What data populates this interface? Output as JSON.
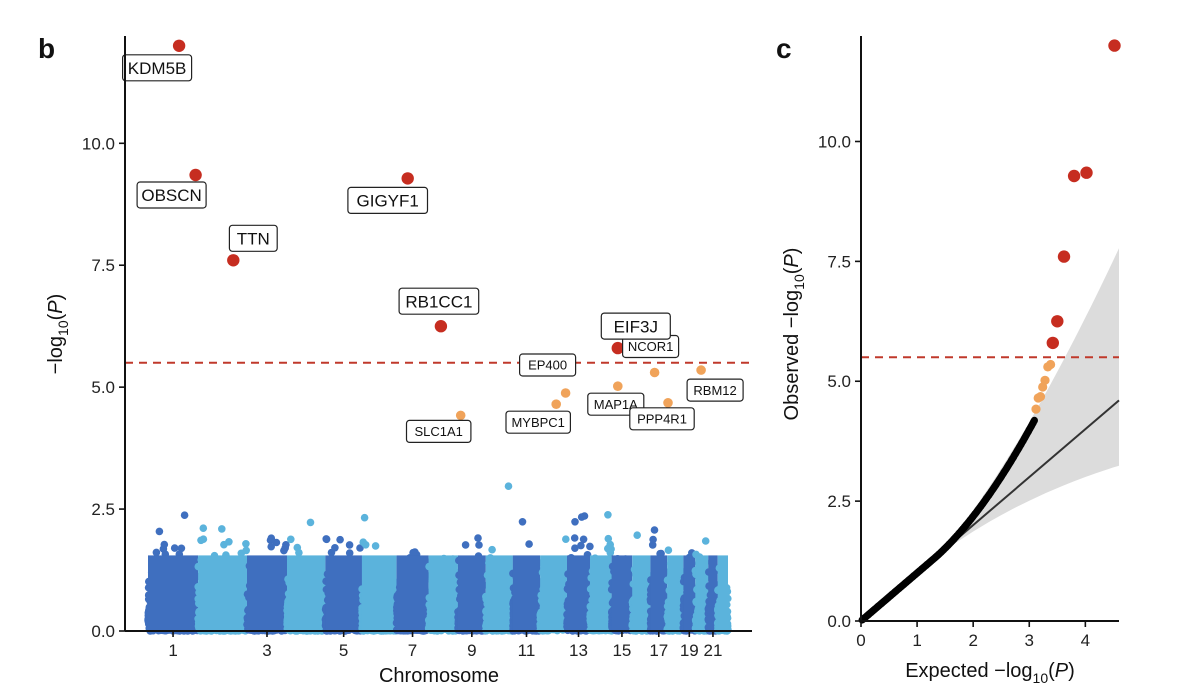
{
  "chart_data": [
    {
      "panel": "b",
      "type": "scatter",
      "subtype": "manhattan",
      "xlabel": "Chromosome",
      "ylabel_parts": {
        "prefix": "−log",
        "sub": "10",
        "open": "(",
        "var": "P",
        "close": ")"
      },
      "ylim": [
        0,
        12.2
      ],
      "yticks": [
        "0.0",
        "2.5",
        "5.0",
        "7.5",
        "10.0"
      ],
      "ytick_values": [
        0,
        2.5,
        5.0,
        7.5,
        10.0
      ],
      "xtick_labels": [
        "1",
        "3",
        "5",
        "7",
        "9",
        "11",
        "13",
        "15",
        "17",
        "19",
        "21"
      ],
      "threshold": 5.5,
      "colors": {
        "chr_dark": "#3f6fbf",
        "chr_light": "#5bb3dc",
        "sig": "#c62d20",
        "sug": "#f0a35a",
        "threshold": "#c0392b"
      },
      "chromosome_lengths": [
        248,
        242,
        198,
        190,
        181,
        171,
        159,
        145,
        138,
        134,
        135,
        133,
        114,
        107,
        102,
        90,
        83,
        80,
        59,
        64,
        47,
        51
      ],
      "significant_genes": [
        {
          "gene": "KDM5B",
          "chr": 1,
          "pos": 0.62,
          "y": 12.0
        },
        {
          "gene": "OBSCN",
          "chr": 1,
          "pos": 0.95,
          "y": 9.35
        },
        {
          "gene": "TTN",
          "chr": 2,
          "pos": 0.72,
          "y": 7.6
        },
        {
          "gene": "GIGYF1",
          "chr": 7,
          "pos": 0.35,
          "y": 9.28
        },
        {
          "gene": "RB1CC1",
          "chr": 8,
          "pos": 0.42,
          "y": 6.25
        },
        {
          "gene": "EIF3J",
          "chr": 15,
          "pos": 0.3,
          "y": 5.8
        }
      ],
      "suggestive_genes": [
        {
          "gene": "SLC1A1",
          "chr": 9,
          "pos": 0.1,
          "y": 4.42
        },
        {
          "gene": "EP400",
          "chr": 12,
          "pos": 0.95,
          "y": 4.88
        },
        {
          "gene": "MYBPC1",
          "chr": 12,
          "pos": 0.6,
          "y": 4.65
        },
        {
          "gene": "MAP1A",
          "chr": 15,
          "pos": 0.3,
          "y": 5.02
        },
        {
          "gene": "NCOR1",
          "chr": 17,
          "pos": 0.25,
          "y": 5.3
        },
        {
          "gene": "PPP4R1",
          "chr": 18,
          "pos": 0.05,
          "y": 4.68
        },
        {
          "gene": "RBM12",
          "chr": 20,
          "pos": 0.45,
          "y": 5.35
        }
      ]
    },
    {
      "panel": "c",
      "type": "scatter",
      "subtype": "qq",
      "xlabel_parts": {
        "prefix": "Expected  −log",
        "sub": "10",
        "open": "(",
        "var": "P",
        "close": ")"
      },
      "ylabel_parts": {
        "prefix": "Observed  −log",
        "sub": "10",
        "open": "(",
        "var": "P",
        "close": ")"
      },
      "xlim": [
        0,
        4.6
      ],
      "ylim": [
        0,
        12.2
      ],
      "xticks": [
        "0",
        "1",
        "2",
        "3",
        "4"
      ],
      "xtick_values": [
        0,
        1,
        2,
        3,
        4
      ],
      "yticks": [
        "0.0",
        "2.5",
        "5.0",
        "7.5",
        "10.0"
      ],
      "ytick_values": [
        0,
        2.5,
        5.0,
        7.5,
        10.0
      ],
      "threshold": 5.5,
      "reference_line": {
        "slope": 1.0
      },
      "top_points": [
        {
          "x": 4.52,
          "y": 12.0
        },
        {
          "x": 4.02,
          "y": 9.35
        },
        {
          "x": 3.8,
          "y": 9.28
        },
        {
          "x": 3.62,
          "y": 7.6
        },
        {
          "x": 3.5,
          "y": 6.25
        },
        {
          "x": 3.42,
          "y": 5.8
        }
      ],
      "suggestive_points": [
        {
          "x": 3.38,
          "y": 5.35
        },
        {
          "x": 3.33,
          "y": 5.3
        },
        {
          "x": 3.28,
          "y": 5.02
        },
        {
          "x": 3.24,
          "y": 4.88
        },
        {
          "x": 3.2,
          "y": 4.68
        },
        {
          "x": 3.16,
          "y": 4.65
        },
        {
          "x": 3.12,
          "y": 4.42
        }
      ]
    }
  ]
}
